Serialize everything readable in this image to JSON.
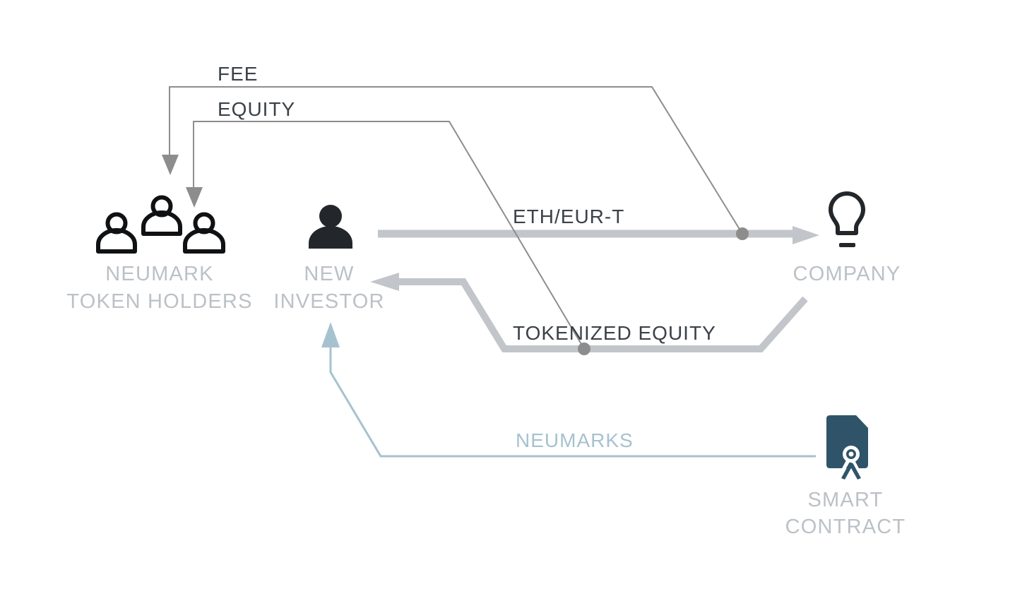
{
  "nodes": {
    "token_holders": {
      "line1": "NEUMARK",
      "line2": "TOKEN HOLDERS",
      "icon": "group-of-people-icon"
    },
    "new_investor": {
      "line1": "NEW",
      "line2": "INVESTOR",
      "icon": "person-icon"
    },
    "company": {
      "line1": "COMPANY",
      "icon": "lightbulb-icon"
    },
    "smart_contract": {
      "line1": "SMART",
      "line2": "CONTRACT",
      "icon": "certificate-document-icon"
    }
  },
  "flows": {
    "fee": "FEE",
    "equity": "EQUITY",
    "eth_eur_t": "ETH/EUR-T",
    "tokenized_equity": "TOKENIZED EQUITY",
    "neumarks": "NEUMARKS"
  },
  "colors": {
    "label_gray": "#bcc1c6",
    "thick_flow": "#c2c6ca",
    "thin_flow": "#8d8d8d",
    "neumarks_flow": "#a6c2cf",
    "icon_dark": "#23272b",
    "contract_blue": "#2f5469"
  }
}
